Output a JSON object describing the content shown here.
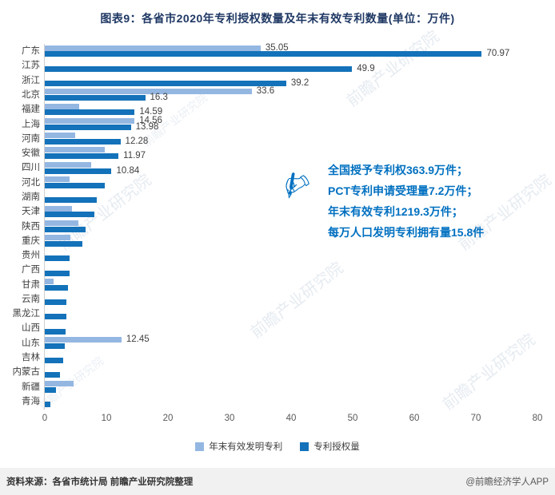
{
  "title": "图表9：各省市2020年专利授权数量及年末有效专利数量(单位：万件)",
  "watermark": "前瞻产业研究院",
  "chart_data": {
    "type": "bar",
    "orientation": "horizontal",
    "title": "图表9：各省市2020年专利授权数量及年末有效专利数量(单位：万件)",
    "xlabel": "",
    "ylabel": "",
    "xlim": [
      0,
      80
    ],
    "xticks": [
      0,
      10,
      20,
      30,
      40,
      50,
      60,
      70,
      80
    ],
    "grid": false,
    "legend_position": "bottom",
    "categories": [
      "广东",
      "江苏",
      "浙江",
      "北京",
      "福建",
      "上海",
      "河南",
      "安徽",
      "四川",
      "河北",
      "湖南",
      "天津",
      "陕西",
      "重庆",
      "贵州",
      "广西",
      "甘肃",
      "云南",
      "黑龙江",
      "山西",
      "山东",
      "吉林",
      "内蒙古",
      "新疆",
      "青海"
    ],
    "series": [
      {
        "name": "年末有效发明专利",
        "color": "#94b7e2",
        "values": [
          35.05,
          null,
          null,
          33.6,
          5.6,
          14.56,
          4.9,
          9.7,
          7.5,
          4.0,
          null,
          4.4,
          5.5,
          4.2,
          null,
          null,
          1.4,
          null,
          null,
          null,
          12.45,
          null,
          null,
          4.7,
          null
        ],
        "labels": [
          "35.05",
          null,
          null,
          "33.6",
          null,
          "14.56",
          null,
          null,
          null,
          null,
          null,
          null,
          null,
          null,
          null,
          null,
          null,
          null,
          null,
          null,
          "12.45",
          null,
          null,
          null,
          null
        ]
      },
      {
        "name": "专利授权量",
        "color": "#1372b9",
        "values": [
          70.97,
          49.9,
          39.2,
          16.3,
          14.59,
          13.98,
          12.28,
          11.97,
          10.84,
          9.7,
          8.4,
          8.0,
          6.6,
          6.1,
          4.0,
          4.0,
          3.8,
          3.5,
          3.5,
          3.4,
          3.2,
          3.0,
          2.5,
          1.8,
          0.9
        ],
        "labels": [
          "70.97",
          "49.9",
          "39.2",
          "16.3",
          "14.59",
          "13.98",
          "12.28",
          "11.97",
          "10.84",
          null,
          null,
          null,
          null,
          null,
          null,
          null,
          null,
          null,
          null,
          null,
          null,
          null,
          null,
          null,
          null
        ]
      }
    ]
  },
  "annotation": {
    "icon": "writing-hand-icon",
    "lines": [
      "全国授予专利权363.9万件；",
      "PCT专利申请受理量7.2万件；",
      "年末有效专利1219.3万件；",
      "每万人口发明专利拥有量15.8件"
    ]
  },
  "legend": [
    "年末有效发明专利",
    "专利授权量"
  ],
  "footer": {
    "source": "资料来源：各省市统计局 前瞻产业研究院整理",
    "credit": "@前瞻经济学人APP"
  }
}
